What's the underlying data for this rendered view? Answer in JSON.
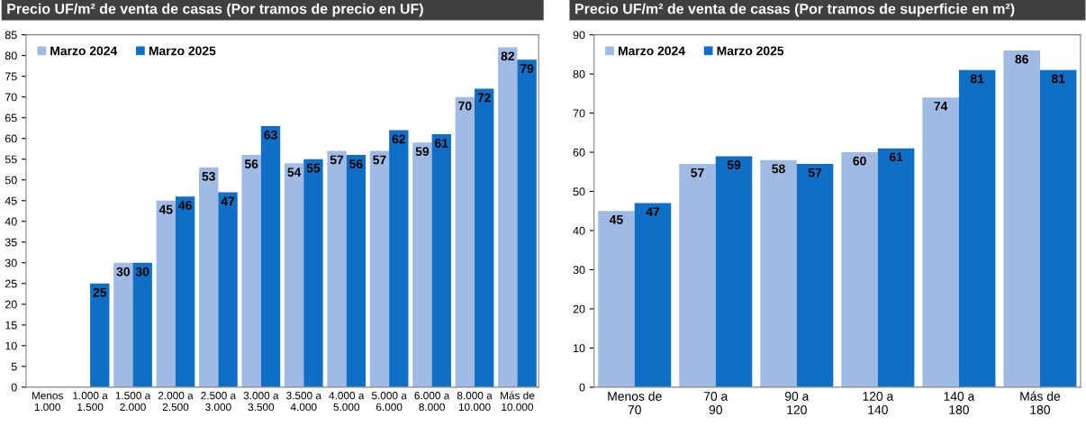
{
  "chart_data": [
    {
      "type": "bar",
      "title": "Precio UF/m² de venta de casas (Por tramos de precio en UF)",
      "categories": [
        "Menos\n1.000",
        "1.000 a\n1.500",
        "1.500 a\n2.000",
        "2.000 a\n2.500",
        "2.500 a\n3.000",
        "3.000 a\n3.500",
        "3.500 a\n4.000",
        "4.000 a\n5.000",
        "5.000 a\n6.000",
        "6.000 a\n8.000",
        "8.000 a\n10.000",
        "Más de\n10.000"
      ],
      "series": [
        {
          "name": "Marzo 2024",
          "color": "#9fbbe3",
          "values": [
            null,
            null,
            30,
            45,
            53,
            56,
            54,
            57,
            57,
            59,
            70,
            82
          ]
        },
        {
          "name": "Marzo 2025",
          "color": "#0f6fc6",
          "values": [
            null,
            25,
            30,
            46,
            47,
            63,
            55,
            56,
            62,
            61,
            72,
            79
          ]
        }
      ],
      "ylim": [
        0,
        85
      ],
      "yticks": [
        0,
        5,
        10,
        15,
        20,
        25,
        30,
        35,
        40,
        45,
        50,
        55,
        60,
        65,
        70,
        75,
        80,
        85
      ],
      "data_labels": true,
      "legend": "top left",
      "grid": false
    },
    {
      "type": "bar",
      "title": "Precio UF/m² de venta de casas (Por tramos de superficie en m²)",
      "categories": [
        "Menos de\n70",
        "70 a\n90",
        "90 a\n120",
        "120 a\n140",
        "140 a\n180",
        "Más de\n180"
      ],
      "series": [
        {
          "name": "Marzo 2024",
          "color": "#9fbbe3",
          "values": [
            45,
            57,
            58,
            60,
            74,
            86
          ]
        },
        {
          "name": "Marzo 2025",
          "color": "#0f6fc6",
          "values": [
            47,
            59,
            57,
            61,
            81,
            81
          ]
        }
      ],
      "ylim": [
        0,
        90
      ],
      "yticks": [
        0,
        10,
        20,
        30,
        40,
        50,
        60,
        70,
        80,
        90
      ],
      "data_labels": true,
      "legend": "top left",
      "grid": false
    }
  ]
}
